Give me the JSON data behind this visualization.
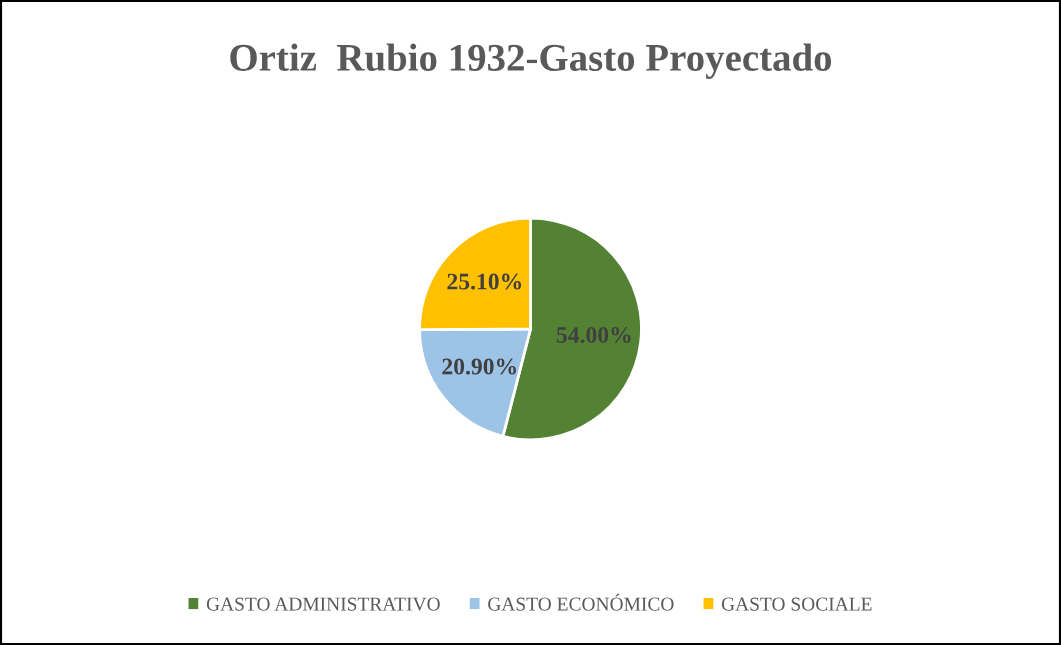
{
  "chart_data": {
    "type": "pie",
    "title": "Ortiz  Rubio 1932-Gasto Proyectado",
    "categories": [
      "GASTO ADMINISTRATIVO",
      "GASTO ECONÓMICO",
      "GASTO SOCIALE"
    ],
    "values": [
      54.0,
      20.9,
      25.1
    ],
    "colors": [
      "#548235",
      "#9dc3e6",
      "#ffc000"
    ],
    "value_labels": [
      "54.00%",
      "20.90%",
      "25.10%"
    ],
    "legend": "bottom"
  }
}
